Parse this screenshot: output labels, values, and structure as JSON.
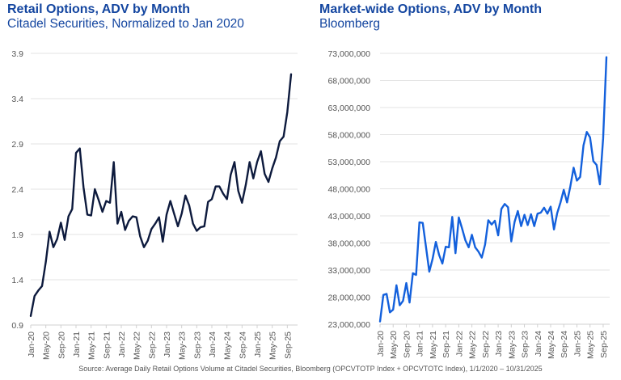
{
  "chart_data": [
    {
      "type": "line",
      "title": "Retail Options, ADV by Month",
      "subtitle": "Citadel Securities, Normalized to Jan 2020",
      "xlabel": "",
      "ylabel": "",
      "ylim": [
        0.9,
        3.9
      ],
      "yticks": [
        "0.9",
        "1.4",
        "1.9",
        "2.4",
        "2.9",
        "3.4",
        "3.9"
      ],
      "ytick_values": [
        0.9,
        1.4,
        1.9,
        2.4,
        2.9,
        3.4,
        3.9
      ],
      "grid": true,
      "xtick_labels": [
        "Jan-20",
        "May-20",
        "Sep-20",
        "Jan-21",
        "May-21",
        "Sep-21",
        "Jan-22",
        "May-22",
        "Sep-22",
        "Jan-23",
        "May-23",
        "Sep-23",
        "Jan-24",
        "May-24",
        "Sep-24",
        "Jan-25",
        "May-25",
        "Sep-25"
      ],
      "x_start": "Jan-20",
      "x_end": "Oct-25",
      "series": [
        {
          "name": "Retail Options ADV (normalized)",
          "color": "#0d1a3d",
          "values": [
            1.0,
            1.22,
            1.28,
            1.33,
            1.6,
            1.93,
            1.76,
            1.85,
            2.03,
            1.84,
            2.1,
            2.18,
            2.8,
            2.85,
            2.42,
            2.12,
            2.11,
            2.4,
            2.28,
            2.15,
            2.27,
            2.25,
            2.7,
            2.02,
            2.15,
            1.95,
            2.05,
            2.1,
            2.09,
            1.88,
            1.76,
            1.83,
            1.96,
            2.02,
            2.09,
            1.82,
            2.12,
            2.27,
            2.13,
            1.99,
            2.13,
            2.33,
            2.22,
            2.02,
            1.94,
            1.98,
            1.99,
            2.26,
            2.29,
            2.43,
            2.43,
            2.35,
            2.29,
            2.56,
            2.7,
            2.38,
            2.25,
            2.45,
            2.7,
            2.52,
            2.7,
            2.82,
            2.57,
            2.48,
            2.63,
            2.75,
            2.93,
            2.98,
            3.25,
            3.67
          ]
        }
      ]
    },
    {
      "type": "line",
      "title": "Market-wide Options, ADV by Month",
      "subtitle": "Bloomberg",
      "xlabel": "",
      "ylabel": "",
      "ylim": [
        23000000,
        73000000
      ],
      "yticks": [
        "23,000,000",
        "28,000,000",
        "33,000,000",
        "38,000,000",
        "43,000,000",
        "48,000,000",
        "53,000,000",
        "58,000,000",
        "63,000,000",
        "68,000,000",
        "73,000,000"
      ],
      "ytick_values": [
        23000000,
        28000000,
        33000000,
        38000000,
        43000000,
        48000000,
        53000000,
        58000000,
        63000000,
        68000000,
        73000000
      ],
      "grid": true,
      "xtick_labels": [
        "Jan-20",
        "May-20",
        "Sep-20",
        "Jan-21",
        "May-21",
        "Sep-21",
        "Jan-22",
        "May-22",
        "Sep-22",
        "Jan-23",
        "May-23",
        "Sep-23",
        "Jan-24",
        "May-24",
        "Sep-24",
        "Jan-25",
        "May-25",
        "Sep-25"
      ],
      "x_start": "Jan-20",
      "x_end": "Oct-25",
      "series": [
        {
          "name": "Market-wide Options ADV",
          "color": "#1360dc",
          "values": [
            23500000,
            28400000,
            28600000,
            25200000,
            25700000,
            30200000,
            26500000,
            27300000,
            30600000,
            27000000,
            32400000,
            32100000,
            41800000,
            41700000,
            37300000,
            32700000,
            35000000,
            38200000,
            35800000,
            34200000,
            37300000,
            37200000,
            42800000,
            36100000,
            42700000,
            40700000,
            38500000,
            37200000,
            39500000,
            37200000,
            36400000,
            35300000,
            37700000,
            42200000,
            41400000,
            42100000,
            39400000,
            44300000,
            45200000,
            44600000,
            38300000,
            41900000,
            43900000,
            41100000,
            43200000,
            41300000,
            43300000,
            41100000,
            43400000,
            43600000,
            44500000,
            43400000,
            44700000,
            40500000,
            43500000,
            45500000,
            47800000,
            45500000,
            48500000,
            51900000,
            49500000,
            50200000,
            56000000,
            58500000,
            57500000,
            53100000,
            52400000,
            48800000,
            57300000,
            72300000
          ]
        }
      ]
    }
  ],
  "source_note": "Source:  Average Daily Retail Options Volume at Citadel Securities, Bloomberg (OPCVTOTP Index + OPCVTOTC Index), 1/1/2020 – 10/31/2025"
}
